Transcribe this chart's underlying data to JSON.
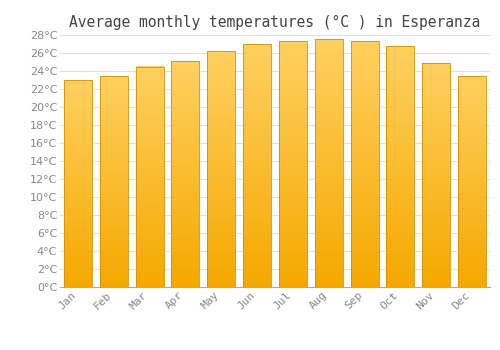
{
  "title": "Average monthly temperatures (°C ) in Esperanza",
  "months": [
    "Jan",
    "Feb",
    "Mar",
    "Apr",
    "May",
    "Jun",
    "Jul",
    "Aug",
    "Sep",
    "Oct",
    "Nov",
    "Dec"
  ],
  "temperatures": [
    23.0,
    23.5,
    24.5,
    25.1,
    26.2,
    27.0,
    27.3,
    27.6,
    27.3,
    26.8,
    24.9,
    23.5
  ],
  "bar_color_top": "#FFD060",
  "bar_color_bottom": "#F5A800",
  "bar_edge_color": "#D49000",
  "background_color": "#FFFFFF",
  "grid_color": "#DDDDDD",
  "text_color": "#888888",
  "ylim": [
    0,
    28
  ],
  "ytick_step": 2,
  "title_fontsize": 10.5,
  "tick_fontsize": 8
}
